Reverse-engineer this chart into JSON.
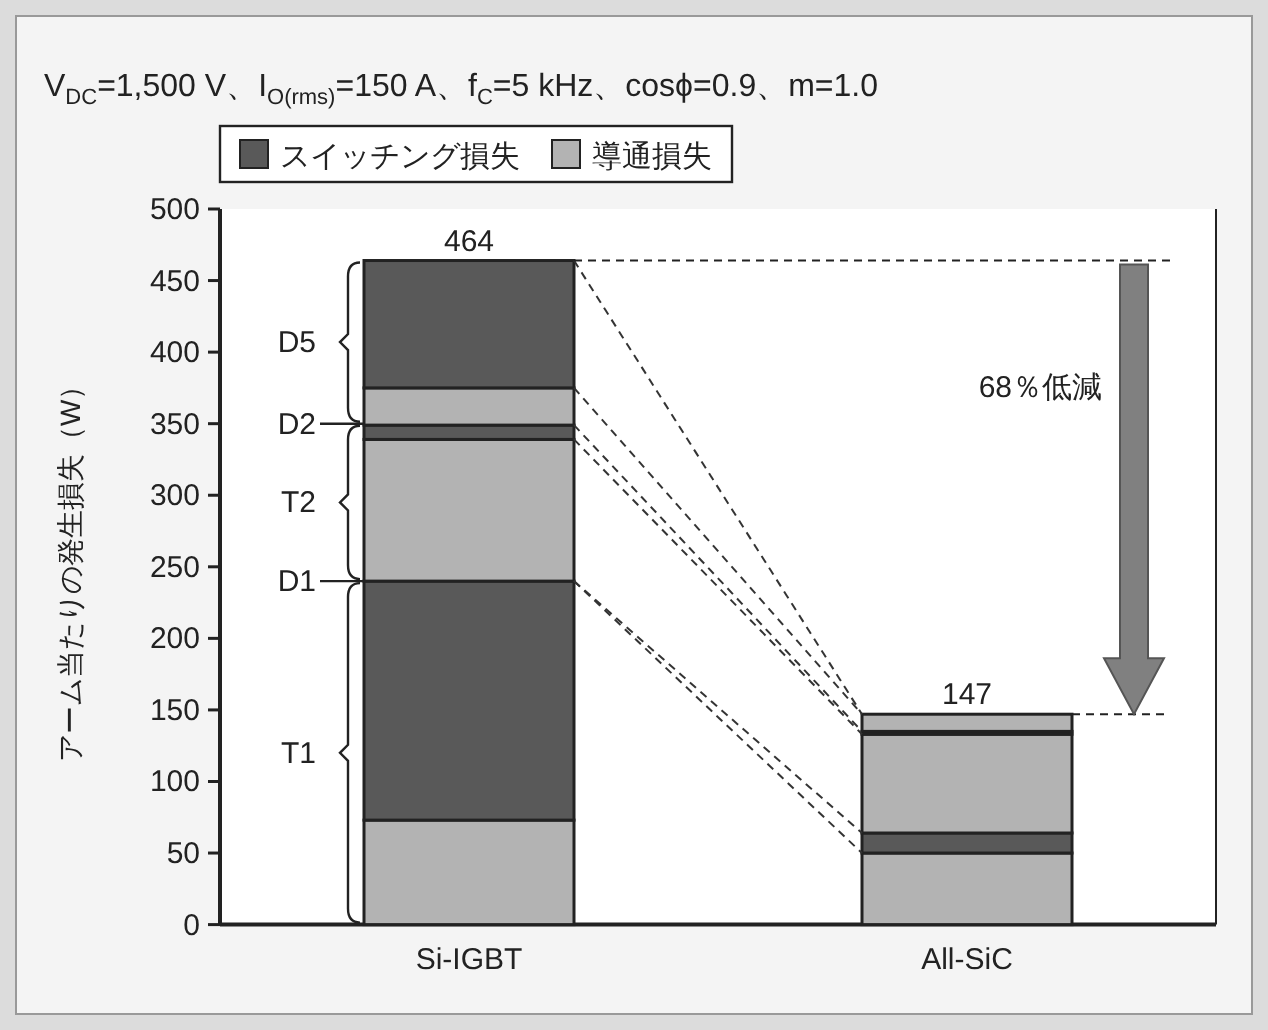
{
  "chart_data": {
    "type": "bar",
    "stacked": true,
    "title": "V$_{DC}$=1,500 V、I$_{O(rms)}$=150 A、f$_{C}$=5 kHz、cosϕ=0.9、m=1.0",
    "ylabel": "アーム当たりの発生損失（W）",
    "categories": [
      "Si-IGBT",
      "All-SiC"
    ],
    "series": [
      {
        "name": "導通損失",
        "color": "#b3b3b3",
        "values": [
          73,
          50
        ]
      },
      {
        "name": "スイッチング損失",
        "color": "#595959",
        "values": [
          167,
          14
        ]
      },
      {
        "color": "#b3b3b3",
        "values": [
          99,
          69
        ]
      },
      {
        "color": "#595959",
        "values": [
          10,
          2
        ]
      },
      {
        "color": "#b3b3b3",
        "values": [
          26,
          12
        ]
      },
      {
        "color": "#595959",
        "values": [
          89,
          0
        ]
      }
    ],
    "ylim": [
      0,
      500
    ],
    "yticks": [
      0,
      50,
      100,
      150,
      200,
      250,
      300,
      350,
      400,
      450,
      500
    ],
    "totals": [
      "464",
      "147"
    ],
    "ref_lines": [
      {
        "axis": "y",
        "value": 240,
        "label": "D1"
      },
      {
        "axis": "y",
        "value": 350,
        "label": "D2"
      },
      {
        "axis": "y",
        "value": 464,
        "line_style": "dashed"
      },
      {
        "axis": "y",
        "value": 147,
        "line_style": "dashed"
      }
    ],
    "annotations": [
      "D5",
      "T2",
      "T1",
      "68％低減"
    ],
    "legend": "top",
    "grid": false
  }
}
